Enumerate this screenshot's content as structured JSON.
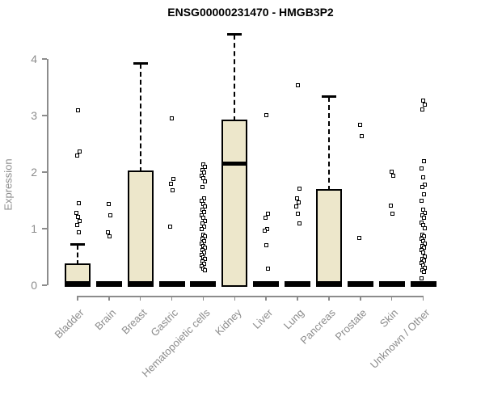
{
  "chart_data": {
    "type": "boxplot",
    "title": "ENSG00000231470 - HMGB3P2",
    "ylabel": "Expression",
    "xlabel": "",
    "ylim": [
      0,
      4
    ],
    "yticks": [
      0,
      1,
      2,
      3,
      4
    ],
    "grid": false,
    "legend": "none",
    "colors": {
      "box_fill": "#ede7cb",
      "box_border": "#000000",
      "median": "#000000",
      "axis": "#8c8c8c",
      "title": "#000000",
      "background": "#ffffff"
    },
    "categories": [
      "Bladder",
      "Brain",
      "Breast",
      "Gastric",
      "Hematopoietic cells",
      "Kidney",
      "Liver",
      "Lung",
      "Pancreas",
      "Prostate",
      "Skin",
      "Unknown / Other"
    ],
    "series": [
      {
        "name": "Bladder",
        "q1": 0,
        "median": 0.03,
        "q3": 0.36,
        "whisker_low": 0,
        "whisker_high": 0.72,
        "outliers": [
          3.1,
          2.36,
          2.3,
          1.45,
          1.28,
          1.21,
          1.14,
          1.07,
          0.93
        ]
      },
      {
        "name": "Brain",
        "q1": 0,
        "median": 0.01,
        "q3": 0.04,
        "whisker_low": 0,
        "whisker_high": 0.04,
        "outliers": [
          1.43,
          1.23,
          0.93,
          0.87
        ]
      },
      {
        "name": "Breast",
        "q1": 0,
        "median": 0.03,
        "q3": 2.0,
        "whisker_low": 0,
        "whisker_high": 3.92,
        "outliers": []
      },
      {
        "name": "Gastric",
        "q1": 0,
        "median": 0.01,
        "q3": 0.04,
        "whisker_low": 0,
        "whisker_high": 0.04,
        "outliers": [
          2.95,
          1.88,
          1.8,
          1.68,
          1.03
        ]
      },
      {
        "name": "Hematopoietic cells",
        "q1": 0,
        "median": 0.01,
        "q3": 0.04,
        "whisker_low": 0,
        "whisker_high": 0.04,
        "outliers": [
          2.14,
          2.09,
          2.04,
          1.99,
          1.94,
          1.89,
          1.84,
          1.74,
          1.54,
          1.49,
          1.44,
          1.39,
          1.34,
          1.29,
          1.24,
          1.19,
          1.14,
          1.09,
          1.03,
          0.99,
          0.9,
          0.86,
          0.82,
          0.78,
          0.74,
          0.7,
          0.66,
          0.62,
          0.58,
          0.54,
          0.5,
          0.46,
          0.42,
          0.38,
          0.34,
          0.3,
          0.26
        ]
      },
      {
        "name": "Kidney",
        "q1": 0,
        "median": 2.15,
        "q3": 2.9,
        "whisker_low": 0,
        "whisker_high": 4.43,
        "outliers": []
      },
      {
        "name": "Liver",
        "q1": 0,
        "median": 0.01,
        "q3": 0.04,
        "whisker_low": 0,
        "whisker_high": 0.04,
        "outliers": [
          3.01,
          1.26,
          1.19,
          1.0,
          0.96,
          0.71,
          0.3
        ]
      },
      {
        "name": "Lung",
        "q1": 0,
        "median": 0.01,
        "q3": 0.04,
        "whisker_low": 0,
        "whisker_high": 0.04,
        "outliers": [
          3.53,
          1.71,
          1.54,
          1.47,
          1.4,
          1.26,
          1.09
        ]
      },
      {
        "name": "Pancreas",
        "q1": 0,
        "median": 0.03,
        "q3": 1.67,
        "whisker_low": 0,
        "whisker_high": 3.33,
        "outliers": []
      },
      {
        "name": "Prostate",
        "q1": 0,
        "median": 0.01,
        "q3": 0.04,
        "whisker_low": 0,
        "whisker_high": 0.04,
        "outliers": [
          2.84,
          2.63,
          0.84
        ]
      },
      {
        "name": "Skin",
        "q1": 0,
        "median": 0.01,
        "q3": 0.04,
        "whisker_low": 0,
        "whisker_high": 0.04,
        "outliers": [
          2.01,
          1.93,
          1.41,
          1.26
        ]
      },
      {
        "name": "Unknown / Other",
        "q1": 0,
        "median": 0.01,
        "q3": 0.04,
        "whisker_low": 0,
        "whisker_high": 0.04,
        "outliers": [
          3.26,
          3.19,
          3.11,
          2.2,
          2.06,
          1.91,
          1.78,
          1.74,
          1.61,
          1.5,
          1.33,
          1.28,
          1.23,
          1.19,
          1.11,
          1.06,
          1.01,
          0.9,
          0.86,
          0.82,
          0.78,
          0.74,
          0.7,
          0.66,
          0.62,
          0.58,
          0.51,
          0.47,
          0.43,
          0.39,
          0.35,
          0.31,
          0.27,
          0.23,
          0.12
        ]
      }
    ]
  }
}
